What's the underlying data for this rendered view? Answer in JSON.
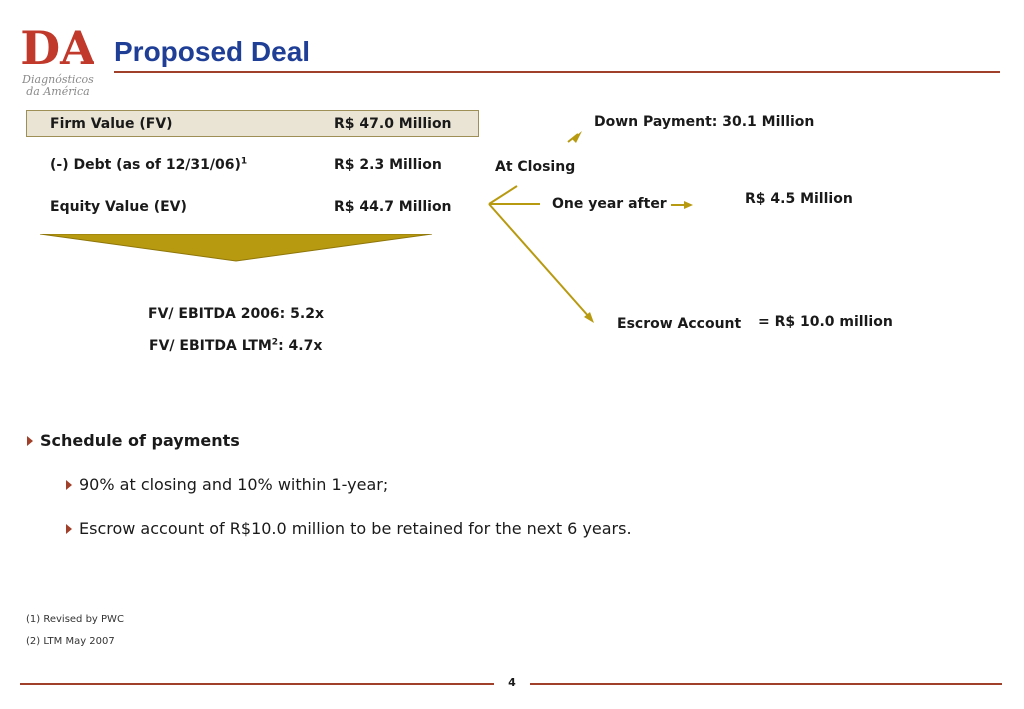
{
  "logo": {
    "monogram": "DA",
    "name_line1": "Diagnósticos",
    "name_line2": "da América",
    "color": "#c0392b"
  },
  "title": "Proposed Deal",
  "valuation": {
    "firm_value_label": "Firm Value (FV)",
    "firm_value": "R$ 47.0 Million",
    "debt_label": "(-) Debt (as of 12/31/06)",
    "debt_footnote": "1",
    "debt_value": "R$ 2.3 Million",
    "equity_label": "Equity Value (EV)",
    "equity_value": "R$ 44.7 Million"
  },
  "multiples": {
    "ebitda_2006": "FV/ EBITDA 2006: 5.2x",
    "ebitda_ltm_prefix": "FV/ EBITDA LTM",
    "ebitda_ltm_footnote": "2",
    "ebitda_ltm_suffix": ": 4.7x"
  },
  "flow": {
    "down_payment": "Down Payment:  30.1 Million",
    "at_closing": "At Closing",
    "one_year_after": "One year after",
    "one_year_amount": "R$ 4.5 Million",
    "escrow_account": "Escrow Account",
    "escrow_amount": "= R$ 10.0 million"
  },
  "bullets": {
    "heading": "Schedule of payments",
    "items": [
      "90% at closing and 10% within 1-year;",
      "Escrow account of  R$10.0 million to be retained for the next 6 years."
    ]
  },
  "footnotes": [
    "(1) Revised by PWC",
    "(2) LTM May 2007"
  ],
  "page_number": "4",
  "colors": {
    "title": "#1f3f97",
    "rule": "#a0402a",
    "gold": "#b89a10",
    "box_fill": "#e9e4d3"
  }
}
